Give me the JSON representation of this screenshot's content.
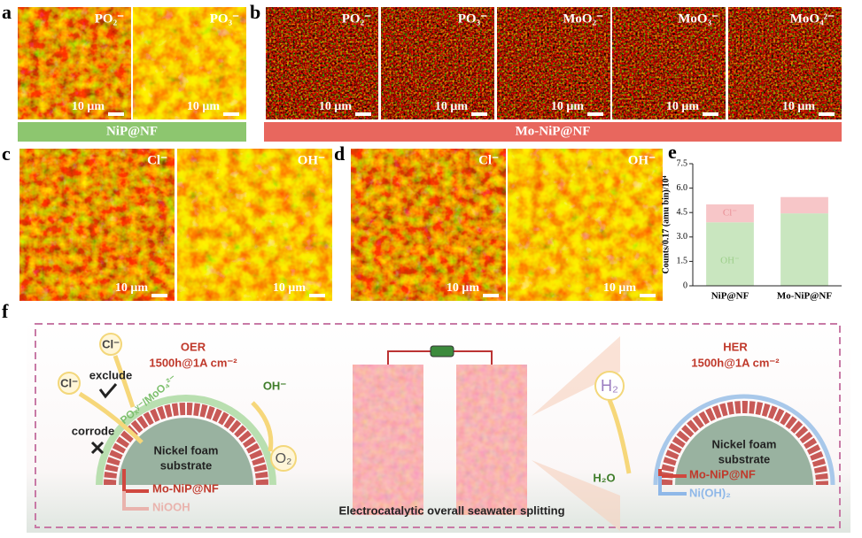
{
  "panel_labels": [
    "a",
    "b",
    "c",
    "d",
    "e",
    "f"
  ],
  "panel_a": {
    "ions": [
      "PO₂⁻",
      "PO₃⁻"
    ],
    "scale_bars": [
      "10 μm",
      "10 μm"
    ],
    "group": "NiP@NF"
  },
  "panel_b": {
    "ions": [
      "PO₂⁻",
      "PO₃⁻",
      "MoO₂⁻",
      "MoO₃⁻",
      "MoO₄²⁻"
    ],
    "scale_bars": [
      "10 μm",
      "10 μm",
      "10 μm",
      "10 μm",
      "10 μm"
    ],
    "group": "Mo-NiP@NF"
  },
  "panel_c": {
    "ions": [
      "Cl⁻",
      "OH⁻"
    ],
    "scale_bars": [
      "10 μm",
      "10 μm"
    ]
  },
  "panel_d": {
    "ions": [
      "Cl⁻",
      "OH⁻"
    ],
    "scale_bars": [
      "10 μm",
      "10 μm"
    ]
  },
  "chart_data": {
    "type": "stacked_bar",
    "y_label": "Counts/0.17 (amu bin)/10⁴",
    "categories": [
      "NiP@NF",
      "Mo-NiP@NF"
    ],
    "series": [
      {
        "name": "OH⁻",
        "color": "#c9e6bf",
        "values": [
          3.9,
          4.45
        ]
      },
      {
        "name": "Cl⁻",
        "color": "#f7c6c8",
        "values": [
          1.1,
          1.0
        ]
      }
    ],
    "ylim": [
      0,
      7.5
    ],
    "yticks": [
      0,
      1.5,
      {
        "value": 3,
        "label": "3.0"
      },
      4.5,
      {
        "value": 6,
        "label": "6.0"
      },
      7.5
    ]
  },
  "panel_f": {
    "oer": {
      "title": "OER",
      "condition": "1500h@1A cm⁻²"
    },
    "her": {
      "title": "HER",
      "condition": "1500h@1A cm⁻²"
    },
    "left": {
      "cl_top": "Cl⁻",
      "cl_left": "Cl⁻",
      "exclude": "exclude",
      "corrode": "corrode",
      "layer": "POₓʸ⁻/MoO₄²⁻",
      "oh": "OH⁻",
      "o2": "O₂",
      "substrate_1": "Nickel foam",
      "substrate_2": "substrate",
      "catalyst": "Mo-NiP@NF",
      "product": "NiOOH"
    },
    "right": {
      "h2": "H₂",
      "h2o": "H₂O",
      "substrate_1": "Nickel foam",
      "substrate_2": "substrate",
      "catalyst": "Mo-NiP@NF",
      "product": "Ni(OH)₂"
    },
    "caption": "Electrocatalytic overall seawater splitting"
  }
}
